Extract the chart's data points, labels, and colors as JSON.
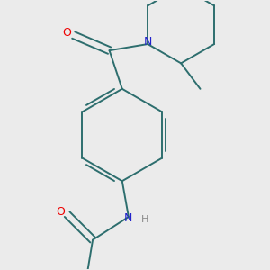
{
  "background_color": "#ebebeb",
  "bond_color": "#2d6e6e",
  "atom_colors": {
    "O": "#ee0000",
    "N": "#2222cc",
    "H": "#888888"
  },
  "figsize": [
    3.0,
    3.0
  ],
  "dpi": 100
}
